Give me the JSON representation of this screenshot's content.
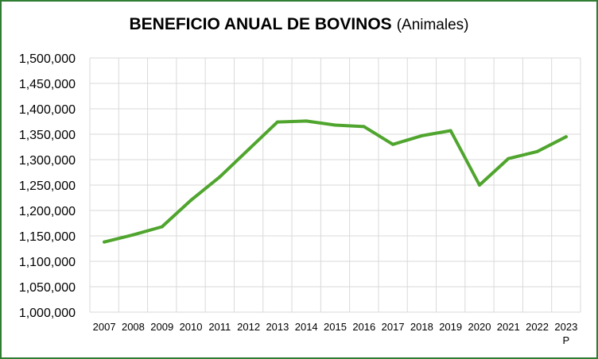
{
  "chart_data": {
    "type": "line",
    "title": "BENEFICIO ANUAL DE BOVINOS",
    "subtitle": "(Animales)",
    "xlabel": "",
    "ylabel": "",
    "categories": [
      "2007",
      "2008",
      "2009",
      "2010",
      "2011",
      "2012",
      "2013",
      "2014",
      "2015",
      "2016",
      "2017",
      "2018",
      "2019",
      "2020",
      "2021",
      "2022",
      "2023"
    ],
    "category_notes": {
      "2023": "P"
    },
    "series": [
      {
        "values": [
          1138000,
          1152000,
          1168000,
          1220000,
          1266000,
          1320000,
          1374000,
          1376000,
          1368000,
          1365000,
          1330000,
          1347000,
          1357000,
          1250000,
          1302000,
          1316000,
          1345000
        ],
        "color": "#4fa52d"
      }
    ],
    "ylim": [
      1000000,
      1500000
    ],
    "yticks": [
      "1,000,000",
      "1,050,000",
      "1,100,000",
      "1,150,000",
      "1,200,000",
      "1,250,000",
      "1,300,000",
      "1,350,000",
      "1,400,000",
      "1,450,000",
      "1,500,000"
    ],
    "grid": true,
    "legend": "none",
    "frame_color": "#2e7d32",
    "grid_color": "#d9d9d9"
  }
}
